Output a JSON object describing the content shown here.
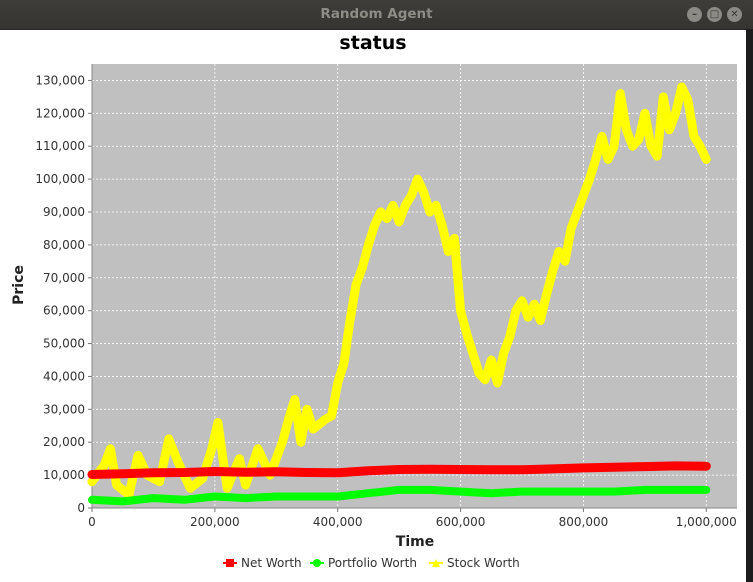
{
  "window": {
    "title": "Random Agent",
    "minimize_icon": "minimize-icon",
    "maximize_icon": "maximize-icon",
    "close_icon": "close-icon",
    "minimize_glyph": "–",
    "maximize_glyph": "□",
    "close_glyph": "✕"
  },
  "chart_data": {
    "type": "line",
    "title": "status",
    "xlabel": "Time",
    "ylabel": "Price",
    "xlim": [
      0,
      1050000
    ],
    "ylim": [
      0,
      135000
    ],
    "x_ticks": [
      0,
      200000,
      400000,
      600000,
      800000,
      1000000
    ],
    "x_tick_labels": [
      "0",
      "200,000",
      "400,000",
      "600,000",
      "800,000",
      "1,000,000"
    ],
    "y_ticks": [
      0,
      10000,
      20000,
      30000,
      40000,
      50000,
      60000,
      70000,
      80000,
      90000,
      100000,
      110000,
      120000,
      130000
    ],
    "y_tick_labels": [
      "0",
      "10,000",
      "20,000",
      "30,000",
      "40,000",
      "50,000",
      "60,000",
      "70,000",
      "80,000",
      "90,000",
      "100,000",
      "110,000",
      "120,000",
      "130,000"
    ],
    "grid": true,
    "legend_position": "bottom",
    "plot_background": "#c0c0c0",
    "series": [
      {
        "name": "Net Worth",
        "color": "#ff0000",
        "marker": "square",
        "x": [
          0,
          50000,
          100000,
          150000,
          200000,
          250000,
          300000,
          350000,
          400000,
          450000,
          500000,
          550000,
          600000,
          650000,
          700000,
          750000,
          800000,
          850000,
          900000,
          950000,
          1000000
        ],
        "values": [
          10200,
          10400,
          10700,
          10800,
          11100,
          10900,
          11000,
          10800,
          10700,
          11300,
          11700,
          11800,
          11700,
          11600,
          11600,
          11900,
          12200,
          12400,
          12600,
          12800,
          12700
        ]
      },
      {
        "name": "Portfolio Worth",
        "color": "#00ff00",
        "marker": "circle",
        "x": [
          0,
          50000,
          100000,
          150000,
          200000,
          250000,
          300000,
          350000,
          400000,
          450000,
          500000,
          550000,
          600000,
          650000,
          700000,
          750000,
          800000,
          850000,
          900000,
          950000,
          1000000
        ],
        "values": [
          2500,
          2000,
          3000,
          2500,
          3500,
          3000,
          3500,
          3500,
          3500,
          4500,
          5500,
          5500,
          5000,
          4500,
          5000,
          5000,
          5000,
          5000,
          5500,
          5500,
          5500
        ]
      },
      {
        "name": "Stock Worth",
        "color": "#ffff00",
        "marker": "triangle",
        "x": [
          0,
          20000,
          30000,
          40000,
          60000,
          75000,
          90000,
          110000,
          125000,
          140000,
          160000,
          180000,
          195000,
          205000,
          220000,
          240000,
          250000,
          270000,
          290000,
          310000,
          320000,
          330000,
          340000,
          350000,
          360000,
          380000,
          390000,
          400000,
          410000,
          420000,
          430000,
          440000,
          450000,
          460000,
          470000,
          480000,
          490000,
          500000,
          510000,
          520000,
          530000,
          540000,
          550000,
          560000,
          570000,
          580000,
          590000,
          600000,
          610000,
          620000,
          630000,
          640000,
          650000,
          660000,
          670000,
          680000,
          690000,
          700000,
          710000,
          720000,
          730000,
          740000,
          750000,
          760000,
          770000,
          780000,
          790000,
          800000,
          810000,
          820000,
          830000,
          840000,
          850000,
          860000,
          870000,
          880000,
          890000,
          900000,
          910000,
          920000,
          930000,
          940000,
          950000,
          960000,
          970000,
          980000,
          990000,
          1000000
        ],
        "values": [
          8000,
          13000,
          18000,
          7000,
          4000,
          16000,
          10000,
          8000,
          21000,
          14000,
          6000,
          9000,
          18000,
          26000,
          6000,
          15000,
          7000,
          18000,
          10000,
          20000,
          27000,
          33000,
          20000,
          30000,
          24000,
          27000,
          28000,
          38000,
          44000,
          57000,
          68000,
          73000,
          80000,
          86000,
          90000,
          88000,
          92000,
          87000,
          92000,
          95000,
          100000,
          96000,
          90000,
          92000,
          86000,
          78000,
          82000,
          60000,
          53000,
          47000,
          41000,
          39000,
          45000,
          38000,
          47000,
          52000,
          60000,
          63000,
          58000,
          62000,
          57000,
          65000,
          72000,
          78000,
          75000,
          85000,
          90000,
          95000,
          100000,
          106000,
          113000,
          106000,
          110000,
          126000,
          115000,
          110000,
          112000,
          120000,
          110000,
          107000,
          125000,
          115000,
          120000,
          128000,
          124000,
          113000,
          110000,
          106000
        ]
      }
    ]
  }
}
